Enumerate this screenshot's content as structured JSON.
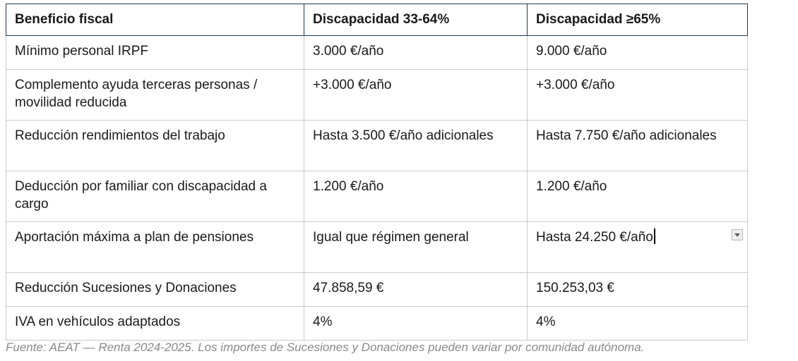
{
  "table": {
    "headers": [
      "Beneficio fiscal",
      "Discapacidad 33-64%",
      "Discapacidad ≥65%"
    ],
    "rows": [
      [
        "Mínimo personal IRPF",
        "3.000 €/año",
        "9.000 €/año"
      ],
      [
        "Complemento ayuda terceras personas / movilidad reducida",
        "+3.000 €/año",
        "+3.000 €/año"
      ],
      [
        "Reducción rendimientos del trabajo",
        "Hasta 3.500 €/año adicionales",
        "Hasta 7.750 €/año adicionales"
      ],
      [
        "Deducción por familiar con discapacidad a cargo",
        "1.200 €/año",
        "1.200 €/año"
      ],
      [
        "Aportación máxima a plan de pensiones",
        "Igual que régimen general",
        "Hasta 24.250 €/año"
      ],
      [
        "Reducción Sucesiones y Donaciones",
        "47.858,59 €",
        "150.253,03 €"
      ],
      [
        "IVA en vehículos adaptados",
        "4%",
        "4%"
      ]
    ]
  },
  "caption": "Fuente: AEAT — Renta 2024-2025. Los importes de Sucesiones y Donaciones pueden variar por comunidad autónoma.",
  "colors": {
    "header_border": "#1f3a5a",
    "cell_border": "#c9c9c9",
    "caption": "#8a8a8a"
  },
  "icons": {
    "dropdown": "dropdown-arrow-icon"
  }
}
